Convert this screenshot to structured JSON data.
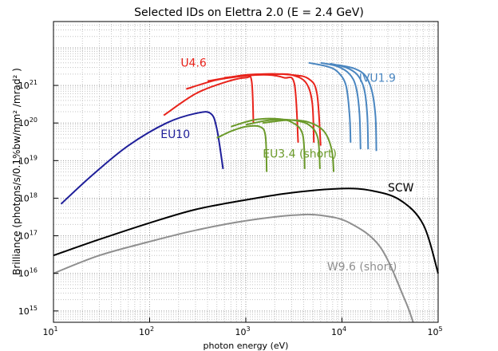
{
  "chart_data": {
    "type": "line",
    "title": "Selected IDs on Elettra 2.0 (E = 2.4 GeV)",
    "xlabel": "photon energy (eV)",
    "ylabel": "Brilliance (photons/s/0.1%bw/mm² /mrad² )",
    "x_scale": "log",
    "y_scale": "log",
    "xlim": [
      10,
      100000
    ],
    "ylim": [
      500000000000000,
      50000000000000000000000
    ],
    "grid": true,
    "x_ticks": [
      {
        "value": 10,
        "label": "10",
        "exp": "1"
      },
      {
        "value": 100,
        "label": "10",
        "exp": "2"
      },
      {
        "value": 1000,
        "label": "10",
        "exp": "3"
      },
      {
        "value": 10000,
        "label": "10",
        "exp": "4"
      },
      {
        "value": 100000,
        "label": "10",
        "exp": "5"
      }
    ],
    "y_ticks": [
      {
        "value": 1000000000000000.0,
        "label": "10",
        "exp": "15"
      },
      {
        "value": 1e+16,
        "label": "10",
        "exp": "16"
      },
      {
        "value": 1e+17,
        "label": "10",
        "exp": "17"
      },
      {
        "value": 1e+18,
        "label": "10",
        "exp": "18"
      },
      {
        "value": 1e+19,
        "label": "10",
        "exp": "19"
      },
      {
        "value": 1e+20,
        "label": "10",
        "exp": "20"
      },
      {
        "value": 1e+21,
        "label": "10",
        "exp": "21"
      }
    ],
    "series": [
      {
        "name": "EU10",
        "color": "#1f1f9a",
        "label_pos": [
          130,
          4e+19
        ],
        "curves": [
          [
            [
              12,
              7e+17
            ],
            [
              25,
              4e+18
            ],
            [
              60,
              2.5e+19
            ],
            [
              150,
              1e+20
            ],
            [
              300,
              1.8e+20
            ],
            [
              430,
              1.8e+20
            ],
            [
              500,
              7e+19
            ],
            [
              580,
              6e+18
            ]
          ]
        ]
      },
      {
        "name": "U4.6",
        "color": "#e8231b",
        "label_pos": [
          210,
          3.2e+21
        ],
        "curves": [
          [
            [
              140,
              1.6e+20
            ],
            [
              300,
              6e+20
            ],
            [
              600,
              1.2e+21
            ],
            [
              1000,
              1.6e+21
            ],
            [
              1150,
              1.3e+21
            ],
            [
              1200,
              1e+20
            ]
          ],
          [
            [
              240,
              8e+20
            ],
            [
              500,
              1.4e+21
            ],
            [
              1000,
              1.8e+21
            ],
            [
              1700,
              1.9e+21
            ],
            [
              2500,
              1.6e+21
            ],
            [
              3200,
              1.1e+21
            ],
            [
              3500,
              3e+19
            ]
          ],
          [
            [
              400,
              1.3e+21
            ],
            [
              1000,
              1.9e+21
            ],
            [
              2000,
              2e+21
            ],
            [
              3000,
              1.9e+21
            ],
            [
              4200,
              1.2e+21
            ],
            [
              4900,
              3.5e+20
            ],
            [
              5100,
              3e+19
            ]
          ],
          [
            [
              600,
              1.6e+21
            ],
            [
              1500,
              2e+21
            ],
            [
              3000,
              1.9e+21
            ],
            [
              4500,
              1.5e+21
            ],
            [
              5500,
              6e+20
            ],
            [
              6000,
              2.5e+19
            ]
          ]
        ]
      },
      {
        "name": "EU3.4 (short)",
        "color": "#6b9a2a",
        "label_pos": [
          1500,
          1.2e+19
        ],
        "curves": [
          [
            [
              500,
              4e+19
            ],
            [
              700,
              6e+19
            ],
            [
              1000,
              8e+19
            ],
            [
              1400,
              8e+19
            ],
            [
              1600,
              4.5e+19
            ],
            [
              1650,
              5e+18
            ]
          ],
          [
            [
              700,
              8e+19
            ],
            [
              1200,
              1.2e+20
            ],
            [
              2000,
              1.3e+20
            ],
            [
              3000,
              1.05e+20
            ],
            [
              3900,
              5e+19
            ],
            [
              4100,
              6e+18
            ]
          ],
          [
            [
              1000,
              9e+19
            ],
            [
              1800,
              1.2e+20
            ],
            [
              3000,
              1.2e+20
            ],
            [
              4500,
              9e+19
            ],
            [
              5600,
              4e+19
            ],
            [
              5900,
              6e+18
            ]
          ],
          [
            [
              1500,
              1e+20
            ],
            [
              2800,
              1.2e+20
            ],
            [
              4500,
              1.05e+20
            ],
            [
              6500,
              6e+19
            ],
            [
              7800,
              2e+19
            ],
            [
              8200,
              5e+18
            ]
          ]
        ]
      },
      {
        "name": "IVU1.9",
        "color": "#4a86c0",
        "label_pos": [
          15000,
          1.25e+21
        ],
        "curves": [
          [
            [
              4500,
              4e+21
            ],
            [
              7000,
              3.2e+21
            ],
            [
              9000,
              2.3e+21
            ],
            [
              11000,
              1e+21
            ],
            [
              12000,
              1.6e+20
            ],
            [
              12300,
              3e+19
            ]
          ],
          [
            [
              6000,
              4e+21
            ],
            [
              9000,
              3.2e+21
            ],
            [
              12000,
              2e+21
            ],
            [
              14000,
              9e+20
            ],
            [
              15200,
              1.8e+20
            ],
            [
              15600,
              2e+19
            ]
          ],
          [
            [
              7500,
              3.8e+21
            ],
            [
              11000,
              3e+21
            ],
            [
              14500,
              1.9e+21
            ],
            [
              17000,
              8e+20
            ],
            [
              18300,
              1.7e+20
            ],
            [
              18700,
              2e+19
            ]
          ],
          [
            [
              9000,
              3.5e+21
            ],
            [
              13500,
              2.8e+21
            ],
            [
              17500,
              1.8e+21
            ],
            [
              20500,
              7e+20
            ],
            [
              22300,
              1.5e+20
            ],
            [
              22800,
              1.8e+19
            ]
          ]
        ]
      },
      {
        "name": "SCW",
        "color": "#000000",
        "label_pos": [
          30000,
          1.5e+18
        ],
        "curves": [
          [
            [
              10,
              3e+16
            ],
            [
              30,
              8e+16
            ],
            [
              100,
              2.2e+17
            ],
            [
              300,
              5e+17
            ],
            [
              1000,
              9e+17
            ],
            [
              3000,
              1.4e+18
            ],
            [
              10000,
              1.8e+18
            ],
            [
              20000,
              1.6e+18
            ],
            [
              40000,
              9e+17
            ],
            [
              70000,
              2e+17
            ],
            [
              100000,
              1e+16
            ]
          ]
        ]
      },
      {
        "name": "W9.6 (short)",
        "color": "#8f8f8f",
        "label_pos": [
          7000,
          1.2e+16
        ],
        "curves": [
          [
            [
              10,
              1e+16
            ],
            [
              30,
              3e+16
            ],
            [
              100,
              7e+16
            ],
            [
              300,
              1.4e+17
            ],
            [
              1000,
              2.5e+17
            ],
            [
              3000,
              3.5e+17
            ],
            [
              6000,
              3.5e+17
            ],
            [
              12000,
              2.2e+17
            ],
            [
              25000,
              5e+16
            ],
            [
              45000,
              2000000000000000.0
            ],
            [
              55000,
              500000000000000.0
            ]
          ]
        ]
      }
    ]
  }
}
